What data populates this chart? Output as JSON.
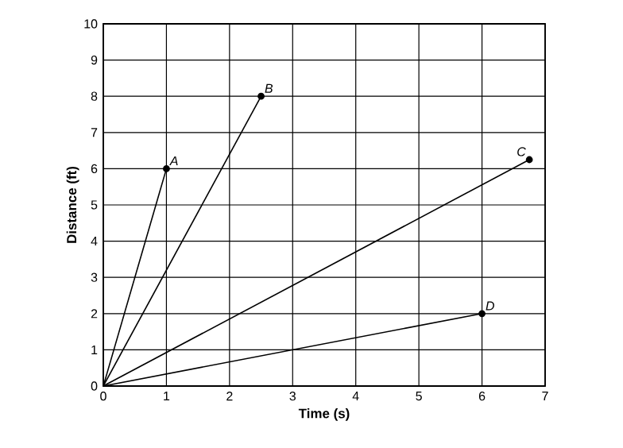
{
  "chart_data": {
    "type": "line",
    "xlabel": "Time (s)",
    "ylabel": "Distance (ft)",
    "xlim": [
      0,
      7
    ],
    "ylim": [
      0,
      10
    ],
    "xticks": [
      0,
      1,
      2,
      3,
      4,
      5,
      6,
      7
    ],
    "yticks": [
      0,
      1,
      2,
      3,
      4,
      5,
      6,
      7,
      8,
      9,
      10
    ],
    "grid": true,
    "marker": "circle",
    "series": [
      {
        "name": "A",
        "color": "#000000",
        "x": [
          0,
          1
        ],
        "values": [
          0,
          6
        ]
      },
      {
        "name": "B",
        "color": "#000000",
        "x": [
          0,
          2.5
        ],
        "values": [
          0,
          8
        ]
      },
      {
        "name": "C",
        "color": "#000000",
        "x": [
          0,
          6.75
        ],
        "values": [
          0,
          6.25
        ]
      },
      {
        "name": "D",
        "color": "#000000",
        "x": [
          0,
          6
        ],
        "values": [
          0,
          2
        ]
      }
    ]
  }
}
